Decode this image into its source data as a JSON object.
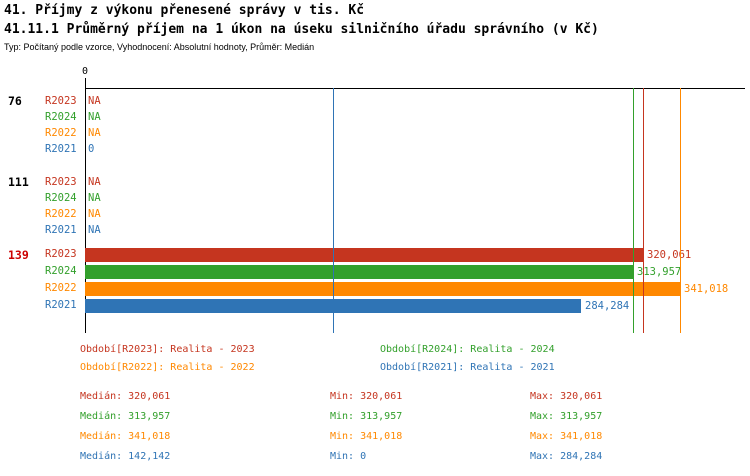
{
  "title1": "41. Příjmy z výkonu přenesené správy v tis. Kč",
  "title2": "41.11.1 Průměrný příjem na 1 úkon na úseku silničního úřadu správního (v Kč)",
  "meta": "Typ: Počítaný podle vzorce, Vyhodnocení: Absolutní hodnoty, Průměr: Medián",
  "colors": {
    "r2023": "#c5351f",
    "r2024": "#33a02c",
    "r2022": "#ff8800",
    "r2021": "#2f74b5",
    "highlight_row": "#cc0000",
    "axis": "#000000"
  },
  "chart_data": {
    "type": "bar",
    "orientation": "horizontal",
    "x_axis": {
      "min": 0,
      "zero_label": "0"
    },
    "scale_max_value": 341018,
    "series_order": [
      "R2023",
      "R2024",
      "R2022",
      "R2021"
    ],
    "groups": [
      {
        "id": "76",
        "highlight": false,
        "rows": [
          {
            "series": "R2023",
            "value": null,
            "label": "NA"
          },
          {
            "series": "R2024",
            "value": null,
            "label": "NA"
          },
          {
            "series": "R2022",
            "value": null,
            "label": "NA"
          },
          {
            "series": "R2021",
            "value": 0,
            "label": "0"
          }
        ]
      },
      {
        "id": "111",
        "highlight": false,
        "rows": [
          {
            "series": "R2023",
            "value": null,
            "label": "NA"
          },
          {
            "series": "R2024",
            "value": null,
            "label": "NA"
          },
          {
            "series": "R2022",
            "value": null,
            "label": "NA"
          },
          {
            "series": "R2021",
            "value": null,
            "label": "NA"
          }
        ]
      },
      {
        "id": "139",
        "highlight": true,
        "rows": [
          {
            "series": "R2023",
            "value": 320061,
            "label": "320,061"
          },
          {
            "series": "R2024",
            "value": 313957,
            "label": "313,957"
          },
          {
            "series": "R2022",
            "value": 341018,
            "label": "341,018"
          },
          {
            "series": "R2021",
            "value": 284284,
            "label": "284,284"
          }
        ]
      }
    ],
    "median_lines": [
      {
        "series": "R2024",
        "value": 313957
      },
      {
        "series": "R2023",
        "value": 320061
      },
      {
        "series": "R2022",
        "value": 341018
      },
      {
        "series": "R2021",
        "value": 142142
      }
    ]
  },
  "legend": {
    "items": [
      {
        "text": "Období[R2023]: Realita - 2023",
        "series": "R2023",
        "row": 0,
        "col": 0
      },
      {
        "text": "Období[R2024]: Realita - 2024",
        "series": "R2024",
        "row": 0,
        "col": 1
      },
      {
        "text": "Období[R2022]: Realita - 2022",
        "series": "R2022",
        "row": 1,
        "col": 0
      },
      {
        "text": "Období[R2021]: Realita - 2021",
        "series": "R2021",
        "row": 1,
        "col": 1
      }
    ]
  },
  "stats": {
    "labels": {
      "median": "Medián",
      "min": "Min",
      "max": "Max"
    },
    "rows": [
      {
        "series": "R2023",
        "median": "320,061",
        "min": "320,061",
        "max": "320,061"
      },
      {
        "series": "R2024",
        "median": "313,957",
        "min": "313,957",
        "max": "313,957"
      },
      {
        "series": "R2022",
        "median": "341,018",
        "min": "341,018",
        "max": "341,018"
      },
      {
        "series": "R2021",
        "median": "142,142",
        "min": "0",
        "max": "284,284"
      }
    ]
  }
}
